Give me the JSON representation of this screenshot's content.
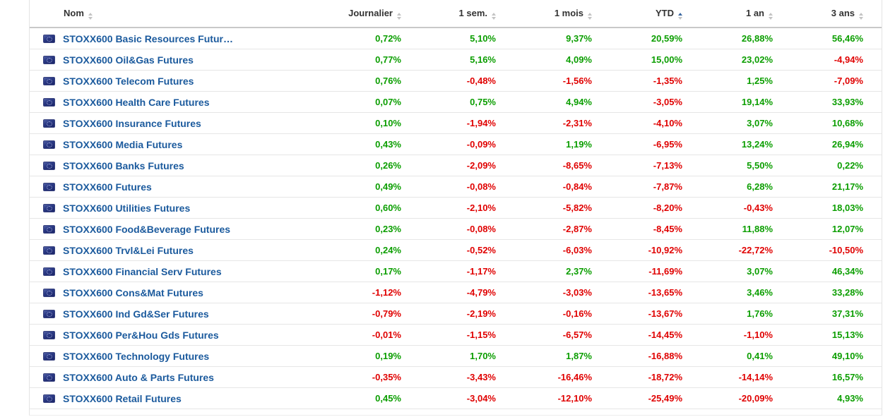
{
  "colors": {
    "positive": "#0b9e00",
    "negative": "#e00000",
    "link": "#1b5a9d",
    "header_text": "#333333",
    "active_sort": "#3a66a0"
  },
  "table": {
    "columns": [
      {
        "key": "nom",
        "label": "Nom",
        "align": "left",
        "sort_active": false
      },
      {
        "key": "journalier",
        "label": "Journalier",
        "align": "right",
        "sort_active": false
      },
      {
        "key": "sem1",
        "label": "1 sem.",
        "align": "right",
        "sort_active": false
      },
      {
        "key": "mois1",
        "label": "1 mois",
        "align": "right",
        "sort_active": false
      },
      {
        "key": "ytd",
        "label": "YTD",
        "align": "right",
        "sort_active": true
      },
      {
        "key": "an1",
        "label": "1 an",
        "align": "right",
        "sort_active": false
      },
      {
        "key": "ans3",
        "label": "3 ans",
        "align": "right",
        "sort_active": false
      }
    ],
    "flag_icon": "eu-flag",
    "rows": [
      {
        "name": "STOXX600 Basic Resources Futur…",
        "values": [
          "0,72%",
          "5,10%",
          "9,37%",
          "20,59%",
          "26,88%",
          "56,46%"
        ]
      },
      {
        "name": "STOXX600 Oil&Gas Futures",
        "values": [
          "0,77%",
          "5,16%",
          "4,09%",
          "15,00%",
          "23,02%",
          "-4,94%"
        ]
      },
      {
        "name": "STOXX600 Telecom Futures",
        "values": [
          "0,76%",
          "-0,48%",
          "-1,56%",
          "-1,35%",
          "1,25%",
          "-7,09%"
        ]
      },
      {
        "name": "STOXX600 Health Care Futures",
        "values": [
          "0,07%",
          "0,75%",
          "4,94%",
          "-3,05%",
          "19,14%",
          "33,93%"
        ]
      },
      {
        "name": "STOXX600 Insurance Futures",
        "values": [
          "0,10%",
          "-1,94%",
          "-2,31%",
          "-4,10%",
          "3,07%",
          "10,68%"
        ]
      },
      {
        "name": "STOXX600 Media Futures",
        "values": [
          "0,43%",
          "-0,09%",
          "1,19%",
          "-6,95%",
          "13,24%",
          "26,94%"
        ]
      },
      {
        "name": "STOXX600 Banks Futures",
        "values": [
          "0,26%",
          "-2,09%",
          "-8,65%",
          "-7,13%",
          "5,50%",
          "0,22%"
        ]
      },
      {
        "name": "STOXX600 Futures",
        "values": [
          "0,49%",
          "-0,08%",
          "-0,84%",
          "-7,87%",
          "6,28%",
          "21,17%"
        ]
      },
      {
        "name": "STOXX600 Utilities Futures",
        "values": [
          "0,60%",
          "-2,10%",
          "-5,82%",
          "-8,20%",
          "-0,43%",
          "18,03%"
        ]
      },
      {
        "name": "STOXX600 Food&Beverage Futures",
        "values": [
          "0,23%",
          "-0,08%",
          "-2,87%",
          "-8,45%",
          "11,88%",
          "12,07%"
        ]
      },
      {
        "name": "STOXX600 Trvl&Lei Futures",
        "values": [
          "0,24%",
          "-0,52%",
          "-6,03%",
          "-10,92%",
          "-22,72%",
          "-10,50%"
        ]
      },
      {
        "name": "STOXX600 Financial Serv Futures",
        "values": [
          "0,17%",
          "-1,17%",
          "2,37%",
          "-11,69%",
          "3,07%",
          "46,34%"
        ]
      },
      {
        "name": "STOXX600 Cons&Mat Futures",
        "values": [
          "-1,12%",
          "-4,79%",
          "-3,03%",
          "-13,65%",
          "3,46%",
          "33,28%"
        ]
      },
      {
        "name": "STOXX600 Ind Gd&Ser Futures",
        "values": [
          "-0,79%",
          "-2,19%",
          "-0,16%",
          "-13,67%",
          "1,76%",
          "37,31%"
        ]
      },
      {
        "name": "STOXX600 Per&Hou Gds Futures",
        "values": [
          "-0,01%",
          "-1,15%",
          "-6,57%",
          "-14,45%",
          "-1,10%",
          "15,13%"
        ]
      },
      {
        "name": "STOXX600 Technology Futures",
        "values": [
          "0,19%",
          "1,70%",
          "1,87%",
          "-16,88%",
          "0,41%",
          "49,10%"
        ]
      },
      {
        "name": "STOXX600 Auto & Parts Futures",
        "values": [
          "-0,35%",
          "-3,43%",
          "-16,46%",
          "-18,72%",
          "-14,14%",
          "16,57%"
        ]
      },
      {
        "name": "STOXX600 Retail Futures",
        "values": [
          "0,45%",
          "-3,04%",
          "-12,10%",
          "-25,49%",
          "-20,09%",
          "4,93%"
        ]
      }
    ]
  }
}
